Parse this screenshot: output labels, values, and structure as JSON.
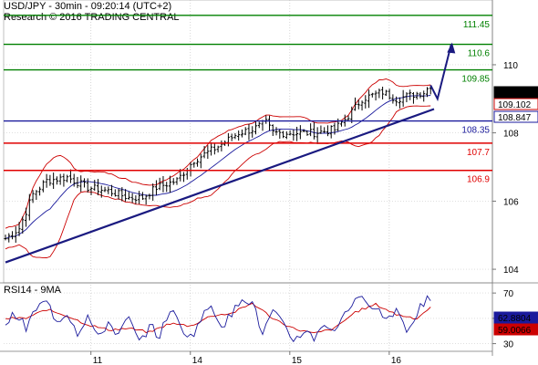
{
  "header": {
    "title": "USD/JPY - 30min - 09:20:14 (UTC+2)",
    "research": "Research © 2016 TRADING CENTRAL"
  },
  "rsi_panel": {
    "label": "RSI14 - 9MA"
  },
  "colors": {
    "price": "#000000",
    "bollinger": "#cc0000",
    "ma": "#1a1a9c",
    "trendline": "#1a1a80",
    "resistance": "#008000",
    "support_red": "#e00000",
    "pivot_blue": "#1a1a9c",
    "projection": "#1a1a80",
    "current_price_box": "#000000",
    "upper_band_box": "#cc0000",
    "lower_band_box": "#1a1a9c"
  },
  "chart_data": [
    {
      "type": "candlestick",
      "title": "USD/JPY - 30min",
      "ylim": [
        103.6,
        111.9
      ],
      "y_ticks": [
        104,
        106,
        108,
        110
      ],
      "x_ticks": [
        {
          "label": "11",
          "idx": 26
        },
        {
          "label": "14",
          "idx": 55
        },
        {
          "label": "15",
          "idx": 84
        },
        {
          "label": "16",
          "idx": 113
        }
      ],
      "n_bars": 125,
      "price_anchors": [
        [
          0,
          104.9
        ],
        [
          4,
          105.2
        ],
        [
          8,
          106.2
        ],
        [
          12,
          106.6
        ],
        [
          18,
          106.7
        ],
        [
          24,
          106.4
        ],
        [
          30,
          106.3
        ],
        [
          36,
          106.1
        ],
        [
          40,
          106.1
        ],
        [
          44,
          106.4
        ],
        [
          50,
          106.6
        ],
        [
          55,
          107.2
        ],
        [
          62,
          107.6
        ],
        [
          68,
          108.0
        ],
        [
          72,
          108.1
        ],
        [
          76,
          108.3
        ],
        [
          78,
          108.0
        ],
        [
          84,
          108.0
        ],
        [
          90,
          108.0
        ],
        [
          96,
          108.1
        ],
        [
          100,
          108.5
        ],
        [
          104,
          109.0
        ],
        [
          110,
          109.2
        ],
        [
          114,
          109.0
        ],
        [
          118,
          109.1
        ],
        [
          122,
          109.2
        ],
        [
          124,
          109.4
        ]
      ],
      "levels": [
        {
          "value": 111.45,
          "label": "111.45",
          "kind": "resistance"
        },
        {
          "value": 110.6,
          "label": "110.6",
          "kind": "resistance"
        },
        {
          "value": 109.85,
          "label": "109.85",
          "kind": "resistance"
        },
        {
          "value": 108.35,
          "label": "108.35",
          "kind": "pivot"
        },
        {
          "value": 107.7,
          "label": "107.7",
          "kind": "support"
        },
        {
          "value": 106.9,
          "label": "106.9",
          "kind": "support"
        }
      ],
      "trendline": {
        "from": [
          0,
          104.2
        ],
        "to": [
          125,
          108.7
        ]
      },
      "projection": [
        [
          124,
          109.4
        ],
        [
          126,
          109.0
        ],
        [
          130,
          110.6
        ]
      ],
      "price_boxes": [
        {
          "label": "109.379",
          "value": 109.379,
          "kind": "current_price_box"
        },
        {
          "label": "109.102",
          "value": 109.102,
          "kind": "upper_band_box"
        },
        {
          "label": "108.847",
          "value": 108.847,
          "kind": "lower_band_box"
        }
      ]
    },
    {
      "type": "line",
      "title": "RSI14 - 9MA",
      "ylim": [
        24,
        78
      ],
      "y_ticks": [
        30,
        50,
        70
      ],
      "n_points": 125,
      "series": [
        {
          "name": "RSI14",
          "values_anchors": [
            [
              0,
              46
            ],
            [
              3,
              54
            ],
            [
              6,
              42
            ],
            [
              9,
              58
            ],
            [
              12,
              63
            ],
            [
              15,
              48
            ],
            [
              18,
              55
            ],
            [
              21,
              39
            ],
            [
              24,
              52
            ],
            [
              27,
              34
            ],
            [
              30,
              47
            ],
            [
              33,
              37
            ],
            [
              36,
              50
            ],
            [
              39,
              30
            ],
            [
              42,
              44
            ],
            [
              45,
              36
            ],
            [
              48,
              58
            ],
            [
              51,
              44
            ],
            [
              54,
              35
            ],
            [
              57,
              49
            ],
            [
              60,
              61
            ],
            [
              63,
              45
            ],
            [
              66,
              52
            ],
            [
              69,
              68
            ],
            [
              72,
              62
            ],
            [
              75,
              38
            ],
            [
              78,
              55
            ],
            [
              81,
              44
            ],
            [
              84,
              33
            ],
            [
              87,
              40
            ],
            [
              90,
              35
            ],
            [
              93,
              47
            ],
            [
              96,
              38
            ],
            [
              99,
              57
            ],
            [
              102,
              62
            ],
            [
              105,
              66
            ],
            [
              108,
              59
            ],
            [
              111,
              49
            ],
            [
              114,
              58
            ],
            [
              117,
              41
            ],
            [
              120,
              54
            ],
            [
              123,
              66
            ],
            [
              124,
              60
            ]
          ]
        },
        {
          "name": "9MA",
          "values_anchors": [
            [
              0,
              50
            ],
            [
              6,
              50
            ],
            [
              12,
              57
            ],
            [
              18,
              52
            ],
            [
              24,
              45
            ],
            [
              30,
              41
            ],
            [
              36,
              42
            ],
            [
              42,
              39
            ],
            [
              48,
              46
            ],
            [
              54,
              44
            ],
            [
              60,
              52
            ],
            [
              66,
              54
            ],
            [
              72,
              62
            ],
            [
              78,
              50
            ],
            [
              84,
              42
            ],
            [
              90,
              38
            ],
            [
              96,
              42
            ],
            [
              102,
              55
            ],
            [
              108,
              61
            ],
            [
              114,
              53
            ],
            [
              120,
              50
            ],
            [
              124,
              59
            ]
          ]
        }
      ],
      "value_boxes": [
        {
          "label": "62.8804",
          "value": 62.8804,
          "kind": "ma"
        },
        {
          "label": "59.0066",
          "value": 59.0066,
          "kind": "bollinger"
        }
      ]
    }
  ]
}
